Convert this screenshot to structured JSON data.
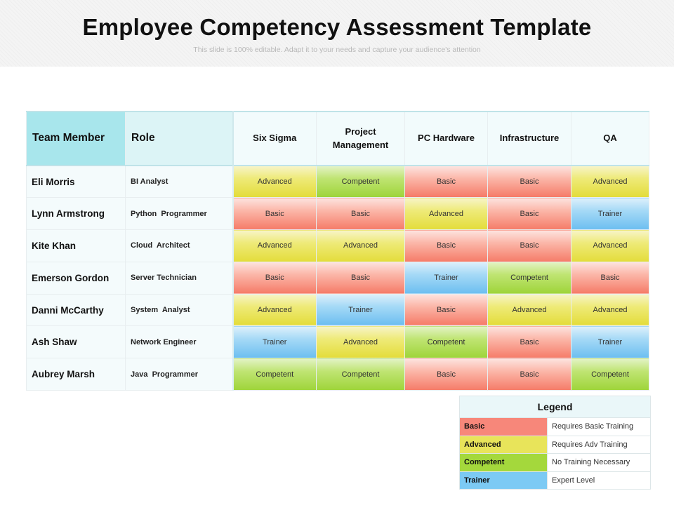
{
  "title": "Employee Competency Assessment Template",
  "subtitle": "This slide is 100% editable. Adapt it to your needs and capture your audience's attention",
  "columns": {
    "member": "Team Member",
    "role": "Role",
    "skills": [
      "Six Sigma",
      "Project Management",
      "PC Hardware",
      "Infrastructure",
      "QA"
    ]
  },
  "rows": [
    {
      "name": "Eli Morris",
      "role": "BI Analyst",
      "levels": [
        "Advanced",
        "Competent",
        "Basic",
        "Basic",
        "Advanced"
      ]
    },
    {
      "name": "Lynn Armstrong",
      "role": "Python  Programmer",
      "levels": [
        "Basic",
        "Basic",
        "Advanced",
        "Basic",
        "Trainer"
      ]
    },
    {
      "name": "Kite Khan",
      "role": "Cloud  Architect",
      "levels": [
        "Advanced",
        "Advanced",
        "Basic",
        "Basic",
        "Advanced"
      ]
    },
    {
      "name": "Emerson Gordon",
      "role": "Server Technician",
      "levels": [
        "Basic",
        "Basic",
        "Trainer",
        "Competent",
        "Basic"
      ]
    },
    {
      "name": "Danni McCarthy",
      "role": "System  Analyst",
      "levels": [
        "Advanced",
        "Trainer",
        "Basic",
        "Advanced",
        "Advanced"
      ]
    },
    {
      "name": "Ash Shaw",
      "role": "Network Engineer",
      "levels": [
        "Trainer",
        "Advanced",
        "Competent",
        "Basic",
        "Trainer"
      ]
    },
    {
      "name": "Aubrey Marsh",
      "role": "Java  Programmer",
      "levels": [
        "Competent",
        "Competent",
        "Basic",
        "Basic",
        "Competent"
      ]
    }
  ],
  "legend": {
    "title": "Legend",
    "items": [
      {
        "level": "Basic",
        "description": "Requires Basic Training"
      },
      {
        "level": "Advanced",
        "description": "Requires Adv Training"
      },
      {
        "level": "Competent",
        "description": "No Training Necessary"
      },
      {
        "level": "Trainer",
        "description": "Expert Level"
      }
    ]
  },
  "colors": {
    "Basic": "#f57b68",
    "Advanced": "#e3dc3a",
    "Competent": "#9ed43a",
    "Trainer": "#6cbef0",
    "header_accent": "#a8e6ec"
  }
}
